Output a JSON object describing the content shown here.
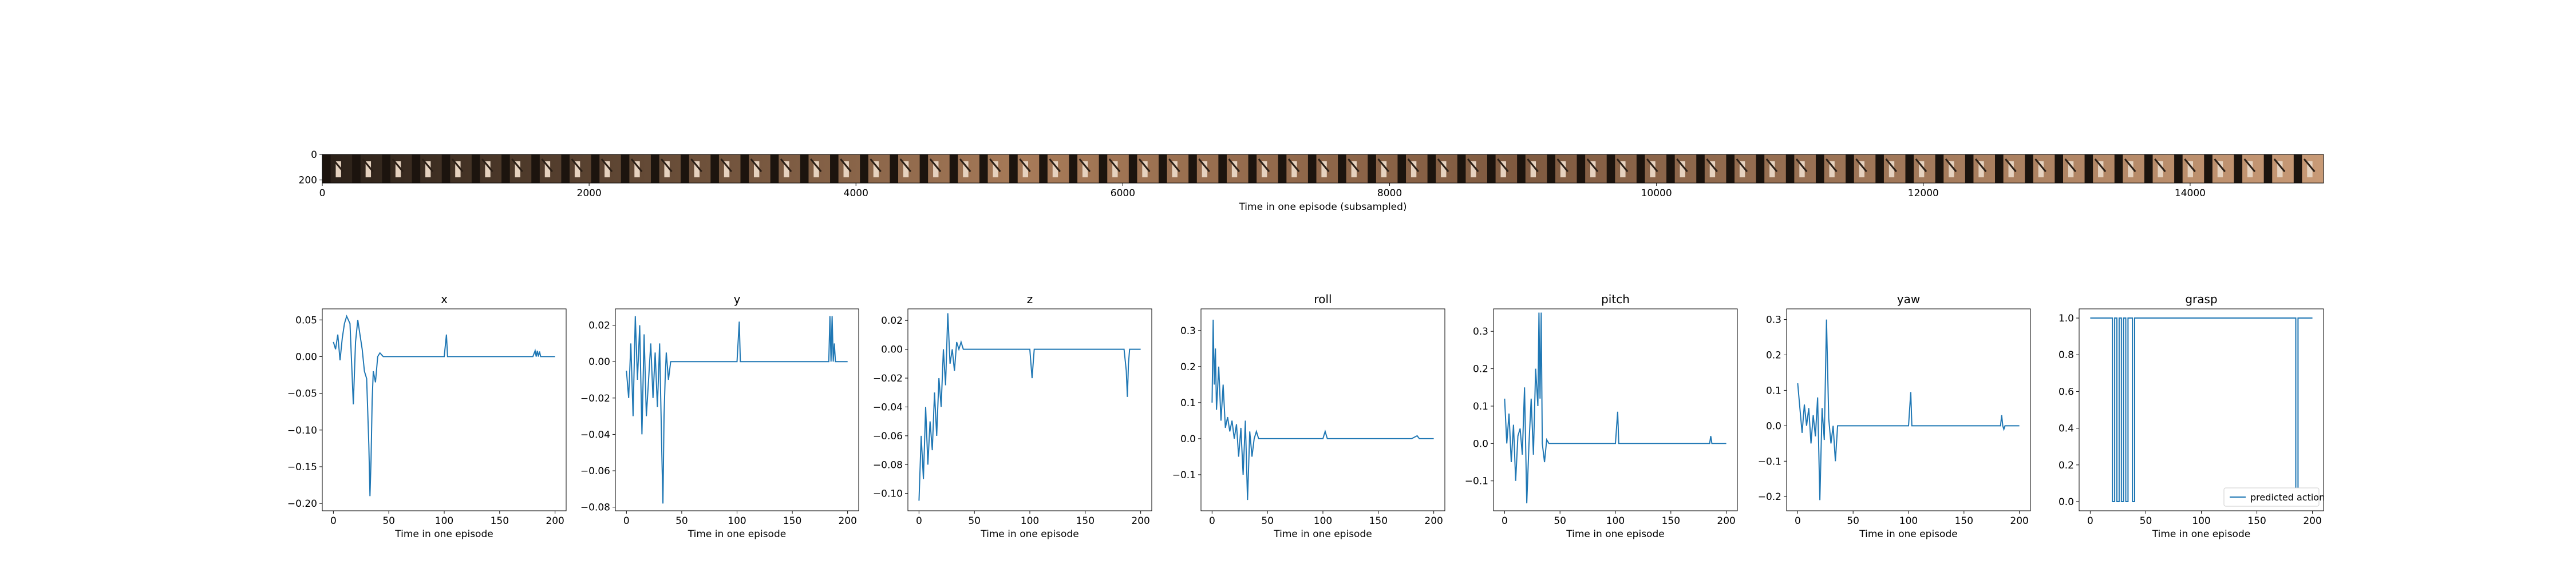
{
  "colors": {
    "line": "#1f77b4",
    "axis": "#000000",
    "background": "#ffffff"
  },
  "filmstrip": {
    "xlabel": "Time in one episode (subsampled)",
    "xlim": [
      0,
      15000
    ],
    "ylim": [
      0,
      224
    ],
    "xticks": [
      0,
      2000,
      4000,
      6000,
      8000,
      10000,
      12000,
      14000
    ],
    "yticks": [
      0,
      200
    ],
    "frame_count": 67
  },
  "chart_data": [
    {
      "type": "line",
      "title": "x",
      "xlabel": "Time in one episode",
      "xlim": [
        -10,
        210
      ],
      "ylim": [
        -0.21,
        0.065
      ],
      "xticks": [
        0,
        50,
        100,
        150,
        200
      ],
      "yticks": [
        0.05,
        0.0,
        -0.05,
        -0.1,
        -0.15,
        -0.2
      ],
      "ytick_decimals": 2,
      "series": [
        {
          "x": [
            0,
            2,
            4,
            6,
            8,
            10,
            12,
            15,
            18,
            20,
            22,
            24,
            26,
            28,
            30,
            32,
            33,
            34,
            35,
            36,
            38,
            40,
            42,
            45,
            50,
            60,
            80,
            100,
            102,
            103,
            104,
            110,
            150,
            180,
            182,
            183,
            184,
            185,
            186,
            187,
            188,
            190,
            200
          ],
          "values": [
            0.02,
            0.01,
            0.03,
            -0.005,
            0.025,
            0.045,
            0.055,
            0.045,
            -0.065,
            0.02,
            0.05,
            0.03,
            0.01,
            -0.02,
            -0.03,
            -0.12,
            -0.19,
            -0.14,
            -0.06,
            -0.02,
            -0.035,
            0.0,
            0.005,
            0.0,
            0.0,
            0.0,
            0.0,
            0.0,
            0.03,
            0.0,
            0.0,
            0.0,
            0.0,
            0.0,
            0.008,
            0.0,
            0.008,
            0.0,
            0.007,
            0.0,
            0.0,
            0.0,
            0.0
          ]
        }
      ]
    },
    {
      "type": "line",
      "title": "y",
      "xlabel": "Time in one episode",
      "xlim": [
        -10,
        210
      ],
      "ylim": [
        -0.082,
        0.029
      ],
      "xticks": [
        0,
        50,
        100,
        150,
        200
      ],
      "yticks": [
        0.02,
        0.0,
        -0.02,
        -0.04,
        -0.06,
        -0.08
      ],
      "ytick_decimals": 2,
      "series": [
        {
          "x": [
            0,
            2,
            4,
            6,
            8,
            10,
            12,
            14,
            16,
            18,
            20,
            22,
            24,
            26,
            28,
            30,
            32,
            33,
            34,
            35,
            36,
            38,
            40,
            45,
            60,
            80,
            100,
            102,
            103,
            104,
            110,
            150,
            180,
            183,
            184,
            185,
            186,
            187,
            188,
            189,
            190,
            200
          ],
          "values": [
            -0.005,
            -0.02,
            0.01,
            -0.03,
            0.025,
            -0.01,
            0.02,
            -0.04,
            0.015,
            -0.03,
            -0.01,
            0.01,
            -0.02,
            0.005,
            -0.025,
            0.01,
            -0.05,
            -0.078,
            -0.03,
            -0.01,
            0.005,
            -0.01,
            0.0,
            0.0,
            0.0,
            0.0,
            0.0,
            0.022,
            0.0,
            0.0,
            0.0,
            0.0,
            0.0,
            0.0,
            0.025,
            0.0,
            0.025,
            0.0,
            0.01,
            0.0,
            0.0,
            0.0
          ]
        }
      ]
    },
    {
      "type": "line",
      "title": "z",
      "xlabel": "Time in one episode",
      "xlim": [
        -10,
        210
      ],
      "ylim": [
        -0.112,
        0.028
      ],
      "xticks": [
        0,
        50,
        100,
        150,
        200
      ],
      "yticks": [
        0.02,
        0.0,
        -0.02,
        -0.04,
        -0.06,
        -0.08,
        -0.1
      ],
      "ytick_decimals": 2,
      "series": [
        {
          "x": [
            0,
            2,
            4,
            6,
            8,
            10,
            12,
            14,
            16,
            18,
            20,
            22,
            24,
            26,
            28,
            30,
            32,
            34,
            36,
            38,
            40,
            42,
            45,
            60,
            80,
            100,
            102,
            104,
            110,
            150,
            180,
            185,
            187,
            188,
            189,
            190,
            200
          ],
          "values": [
            -0.105,
            -0.06,
            -0.09,
            -0.04,
            -0.08,
            -0.05,
            -0.07,
            -0.03,
            -0.06,
            -0.02,
            -0.04,
            0.0,
            -0.025,
            0.025,
            -0.01,
            0.0,
            -0.015,
            0.005,
            0.0,
            0.005,
            0.0,
            0.0,
            0.0,
            0.0,
            0.0,
            0.0,
            -0.02,
            0.0,
            0.0,
            0.0,
            0.0,
            0.0,
            -0.015,
            -0.033,
            -0.01,
            0.0,
            0.0
          ]
        }
      ]
    },
    {
      "type": "line",
      "title": "roll",
      "xlabel": "Time in one episode",
      "xlim": [
        -10,
        210
      ],
      "ylim": [
        -0.2,
        0.36
      ],
      "xticks": [
        0,
        50,
        100,
        150,
        200
      ],
      "yticks": [
        0.3,
        0.2,
        0.1,
        0.0,
        -0.1
      ],
      "ytick_decimals": 1,
      "series": [
        {
          "x": [
            0,
            1,
            2,
            3,
            4,
            6,
            8,
            10,
            12,
            14,
            16,
            18,
            20,
            22,
            24,
            26,
            28,
            30,
            32,
            34,
            36,
            38,
            40,
            42,
            45,
            60,
            80,
            100,
            102,
            104,
            110,
            150,
            180,
            185,
            187,
            190,
            200
          ],
          "values": [
            0.1,
            0.33,
            0.15,
            0.25,
            0.08,
            0.2,
            0.05,
            0.15,
            0.03,
            0.06,
            0.02,
            0.05,
            0.0,
            0.04,
            -0.05,
            0.03,
            -0.1,
            0.05,
            -0.17,
            0.02,
            -0.05,
            0.0,
            0.02,
            0.0,
            0.0,
            0.0,
            0.0,
            0.0,
            0.02,
            0.0,
            0.0,
            0.0,
            0.0,
            0.008,
            0.0,
            0.0,
            0.0
          ]
        }
      ]
    },
    {
      "type": "line",
      "title": "pitch",
      "xlabel": "Time in one episode",
      "xlim": [
        -10,
        210
      ],
      "ylim": [
        -0.18,
        0.36
      ],
      "xticks": [
        0,
        50,
        100,
        150,
        200
      ],
      "yticks": [
        0.3,
        0.2,
        0.1,
        0.0,
        -0.1
      ],
      "ytick_decimals": 1,
      "series": [
        {
          "x": [
            0,
            2,
            4,
            6,
            8,
            10,
            12,
            14,
            16,
            18,
            20,
            22,
            24,
            26,
            28,
            30,
            31,
            32,
            33,
            34,
            36,
            38,
            40,
            45,
            60,
            80,
            100,
            102,
            103,
            104,
            110,
            150,
            180,
            185,
            186,
            187,
            190,
            200
          ],
          "values": [
            0.12,
            0.0,
            0.08,
            -0.05,
            0.05,
            -0.1,
            0.02,
            0.04,
            -0.03,
            0.15,
            -0.16,
            0.0,
            0.12,
            -0.03,
            0.2,
            0.1,
            0.35,
            0.12,
            0.35,
            0.0,
            -0.05,
            0.01,
            0.0,
            0.0,
            0.0,
            0.0,
            0.0,
            0.085,
            0.0,
            0.0,
            0.0,
            0.0,
            0.0,
            0.0,
            0.02,
            0.0,
            0.0,
            0.0
          ]
        }
      ]
    },
    {
      "type": "line",
      "title": "yaw",
      "xlabel": "Time in one episode",
      "xlim": [
        -10,
        210
      ],
      "ylim": [
        -0.24,
        0.33
      ],
      "xticks": [
        0,
        50,
        100,
        150,
        200
      ],
      "yticks": [
        0.3,
        0.2,
        0.1,
        0.0,
        -0.1,
        -0.2
      ],
      "ytick_decimals": 1,
      "series": [
        {
          "x": [
            0,
            2,
            4,
            6,
            8,
            10,
            12,
            14,
            16,
            18,
            20,
            22,
            24,
            26,
            28,
            30,
            32,
            34,
            36,
            38,
            40,
            45,
            60,
            80,
            100,
            102,
            103,
            104,
            110,
            150,
            180,
            183,
            184,
            185,
            186,
            187,
            188,
            190,
            200
          ],
          "values": [
            0.12,
            0.05,
            -0.02,
            0.06,
            0.0,
            0.05,
            -0.05,
            0.03,
            -0.03,
            0.08,
            -0.21,
            0.05,
            -0.04,
            0.3,
            0.02,
            -0.05,
            0.0,
            -0.1,
            0.0,
            0.0,
            0.0,
            0.0,
            0.0,
            0.0,
            0.0,
            0.095,
            0.0,
            0.0,
            0.0,
            0.0,
            0.0,
            0.0,
            0.03,
            0.0,
            -0.01,
            0.0,
            0.0,
            0.0,
            0.0
          ]
        }
      ]
    },
    {
      "type": "line",
      "title": "grasp",
      "xlabel": "Time in one episode",
      "xlim": [
        -10,
        210
      ],
      "ylim": [
        -0.05,
        1.05
      ],
      "xticks": [
        0,
        50,
        100,
        150,
        200
      ],
      "yticks": [
        1.0,
        0.8,
        0.6,
        0.4,
        0.2,
        0.0
      ],
      "ytick_decimals": 1,
      "legend": "predicted action",
      "legend_position": "lower right",
      "series": [
        {
          "name": "predicted action",
          "x": [
            0,
            20,
            20,
            22,
            22,
            24,
            24,
            26,
            26,
            28,
            28,
            30,
            30,
            32,
            32,
            34,
            34,
            38,
            38,
            40,
            40,
            45,
            185,
            185,
            187,
            187,
            189,
            189,
            200
          ],
          "values": [
            1,
            1,
            0,
            0,
            1,
            1,
            0,
            0,
            1,
            1,
            0,
            0,
            1,
            1,
            0,
            0,
            1,
            1,
            0,
            0,
            1,
            1,
            1,
            0,
            0,
            1,
            1,
            1,
            1
          ]
        }
      ]
    }
  ]
}
